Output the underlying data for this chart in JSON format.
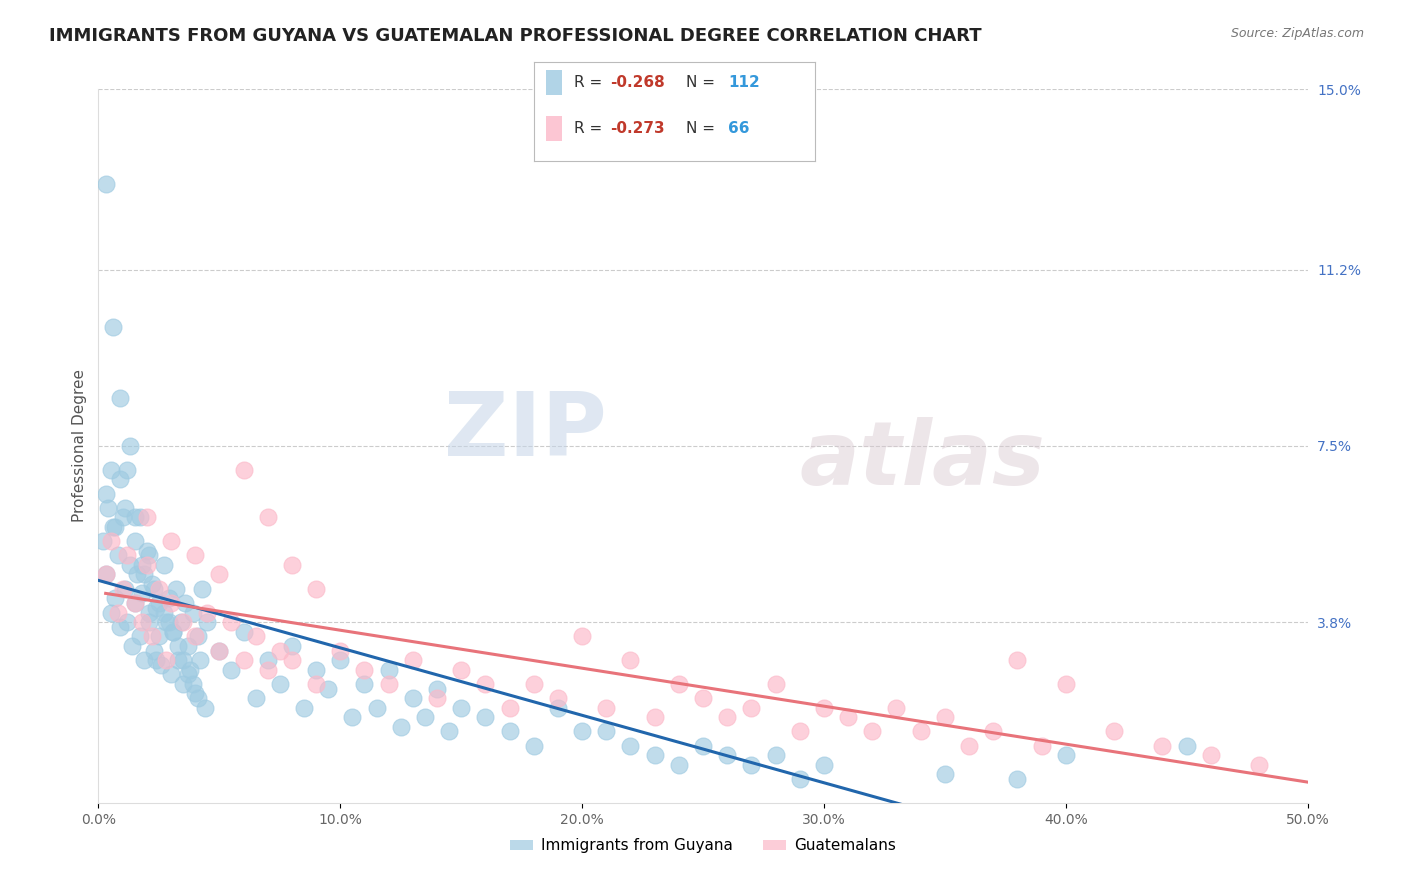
{
  "title": "IMMIGRANTS FROM GUYANA VS GUATEMALAN PROFESSIONAL DEGREE CORRELATION CHART",
  "source": "Source: ZipAtlas.com",
  "ylabel": "Professional Degree",
  "legend_label1": "Immigrants from Guyana",
  "legend_label2": "Guatemalans",
  "r1": -0.268,
  "n1": 112,
  "r2": -0.273,
  "n2": 66,
  "xlim": [
    0.0,
    0.5
  ],
  "ylim": [
    0.0,
    0.15
  ],
  "xtick_positions": [
    0.0,
    0.1,
    0.2,
    0.3,
    0.4,
    0.5
  ],
  "xticklabels": [
    "0.0%",
    "10.0%",
    "20.0%",
    "30.0%",
    "40.0%",
    "50.0%"
  ],
  "ytick_positions": [
    0.038,
    0.075,
    0.112,
    0.15
  ],
  "ytick_labels": [
    "3.8%",
    "7.5%",
    "11.2%",
    "15.0%"
  ],
  "color1": "#9ecae1",
  "color2": "#fcb8c8",
  "trendline1_color": "#2166ac",
  "trendline2_color": "#e8737a",
  "background_color": "#ffffff",
  "watermark_zip": "ZIP",
  "watermark_atlas": "atlas",
  "title_fontsize": 13,
  "axis_label_fontsize": 11,
  "tick_fontsize": 10,
  "scatter1_x": [
    0.002,
    0.003,
    0.004,
    0.005,
    0.006,
    0.007,
    0.008,
    0.009,
    0.01,
    0.011,
    0.012,
    0.013,
    0.014,
    0.015,
    0.016,
    0.017,
    0.018,
    0.019,
    0.02,
    0.021,
    0.022,
    0.023,
    0.024,
    0.025,
    0.026,
    0.027,
    0.028,
    0.029,
    0.03,
    0.031,
    0.032,
    0.033,
    0.034,
    0.035,
    0.036,
    0.037,
    0.038,
    0.039,
    0.04,
    0.041,
    0.042,
    0.043,
    0.044,
    0.045,
    0.05,
    0.055,
    0.06,
    0.065,
    0.07,
    0.075,
    0.08,
    0.085,
    0.09,
    0.095,
    0.1,
    0.105,
    0.11,
    0.115,
    0.12,
    0.125,
    0.13,
    0.135,
    0.14,
    0.145,
    0.15,
    0.16,
    0.17,
    0.18,
    0.19,
    0.2,
    0.003,
    0.005,
    0.007,
    0.009,
    0.011,
    0.013,
    0.015,
    0.017,
    0.019,
    0.021,
    0.023,
    0.025,
    0.027,
    0.029,
    0.031,
    0.033,
    0.035,
    0.037,
    0.039,
    0.041,
    0.003,
    0.006,
    0.009,
    0.012,
    0.015,
    0.018,
    0.021,
    0.024,
    0.21,
    0.22,
    0.23,
    0.24,
    0.25,
    0.26,
    0.27,
    0.28,
    0.29,
    0.3,
    0.35,
    0.38,
    0.4,
    0.45
  ],
  "scatter1_y": [
    0.055,
    0.048,
    0.062,
    0.04,
    0.058,
    0.043,
    0.052,
    0.037,
    0.06,
    0.045,
    0.038,
    0.05,
    0.033,
    0.042,
    0.048,
    0.035,
    0.044,
    0.03,
    0.053,
    0.038,
    0.046,
    0.032,
    0.041,
    0.035,
    0.029,
    0.05,
    0.038,
    0.043,
    0.027,
    0.036,
    0.045,
    0.03,
    0.038,
    0.025,
    0.042,
    0.033,
    0.028,
    0.04,
    0.023,
    0.035,
    0.03,
    0.045,
    0.02,
    0.038,
    0.032,
    0.028,
    0.036,
    0.022,
    0.03,
    0.025,
    0.033,
    0.02,
    0.028,
    0.024,
    0.03,
    0.018,
    0.025,
    0.02,
    0.028,
    0.016,
    0.022,
    0.018,
    0.024,
    0.015,
    0.02,
    0.018,
    0.015,
    0.012,
    0.02,
    0.015,
    0.065,
    0.07,
    0.058,
    0.068,
    0.062,
    0.075,
    0.055,
    0.06,
    0.048,
    0.052,
    0.045,
    0.042,
    0.04,
    0.038,
    0.036,
    0.033,
    0.03,
    0.027,
    0.025,
    0.022,
    0.13,
    0.1,
    0.085,
    0.07,
    0.06,
    0.05,
    0.04,
    0.03,
    0.015,
    0.012,
    0.01,
    0.008,
    0.012,
    0.01,
    0.008,
    0.01,
    0.005,
    0.008,
    0.006,
    0.005,
    0.01,
    0.012
  ],
  "scatter2_x": [
    0.003,
    0.005,
    0.008,
    0.01,
    0.012,
    0.015,
    0.018,
    0.02,
    0.022,
    0.025,
    0.028,
    0.03,
    0.035,
    0.04,
    0.045,
    0.05,
    0.055,
    0.06,
    0.065,
    0.07,
    0.075,
    0.08,
    0.09,
    0.1,
    0.11,
    0.12,
    0.13,
    0.14,
    0.15,
    0.16,
    0.17,
    0.18,
    0.19,
    0.2,
    0.21,
    0.22,
    0.23,
    0.24,
    0.25,
    0.26,
    0.27,
    0.28,
    0.29,
    0.3,
    0.31,
    0.32,
    0.33,
    0.34,
    0.35,
    0.36,
    0.37,
    0.38,
    0.39,
    0.4,
    0.42,
    0.44,
    0.46,
    0.48,
    0.02,
    0.03,
    0.04,
    0.05,
    0.06,
    0.07,
    0.08,
    0.09
  ],
  "scatter2_y": [
    0.048,
    0.055,
    0.04,
    0.045,
    0.052,
    0.042,
    0.038,
    0.05,
    0.035,
    0.045,
    0.03,
    0.042,
    0.038,
    0.035,
    0.04,
    0.032,
    0.038,
    0.03,
    0.035,
    0.028,
    0.032,
    0.03,
    0.025,
    0.032,
    0.028,
    0.025,
    0.03,
    0.022,
    0.028,
    0.025,
    0.02,
    0.025,
    0.022,
    0.035,
    0.02,
    0.03,
    0.018,
    0.025,
    0.022,
    0.018,
    0.02,
    0.025,
    0.015,
    0.02,
    0.018,
    0.015,
    0.02,
    0.015,
    0.018,
    0.012,
    0.015,
    0.03,
    0.012,
    0.025,
    0.015,
    0.012,
    0.01,
    0.008,
    0.06,
    0.055,
    0.052,
    0.048,
    0.07,
    0.06,
    0.05,
    0.045
  ]
}
